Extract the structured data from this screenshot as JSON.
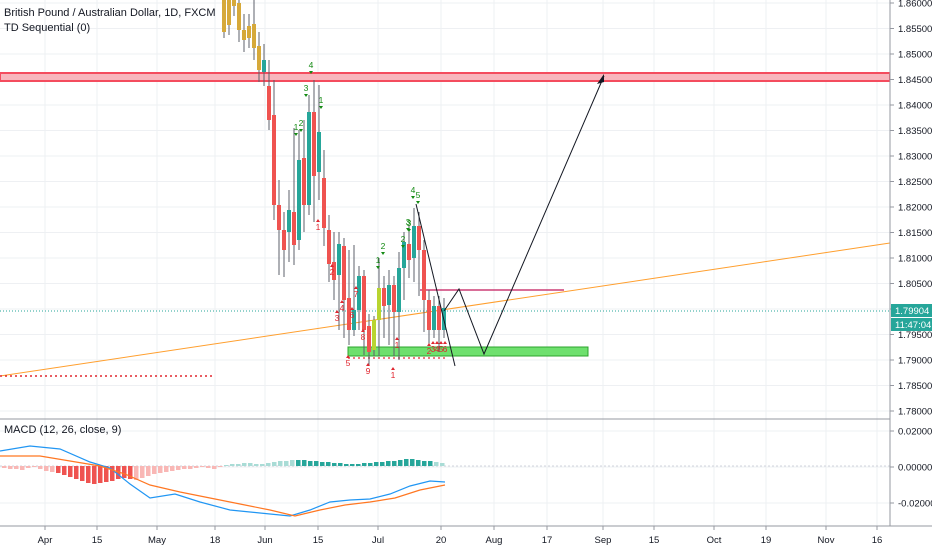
{
  "header": {
    "symbol": "British Pound / Australian Dollar, 1D, FXCM",
    "indicator": "TD Sequential (0)"
  },
  "macd": {
    "label": "MACD (12, 26, close, 9)",
    "ticks": [
      "0.02000",
      "0.00000",
      "-0.02000"
    ]
  },
  "price_axis": {
    "ticks": [
      "1.86000",
      "1.85500",
      "1.85000",
      "1.84500",
      "1.84000",
      "1.83500",
      "1.83000",
      "1.82500",
      "1.82000",
      "1.81500",
      "1.81000",
      "1.80500",
      "1.80000",
      "1.79500",
      "1.79000",
      "1.78500",
      "1.78000"
    ],
    "last_price": "1.79904",
    "countdown": "11:47:04"
  },
  "time_axis": {
    "ticks": [
      "Apr",
      "15",
      "May",
      "18",
      "Jun",
      "15",
      "Jul",
      "20",
      "Aug",
      "17",
      "Sep",
      "15",
      "Oct",
      "19",
      "Nov",
      "16"
    ]
  },
  "colors": {
    "up": "#26a69a",
    "down": "#ef5350",
    "resistance_zone": "#f44c5e",
    "support_zone": "#4cd964",
    "trendline": "#ff9f2e",
    "price_line": "#26a69a",
    "macd_line": "#2196f3",
    "signal_line": "#ff7722"
  },
  "chart_data": {
    "type": "candlestick",
    "resistance_zone": [
      1.8445,
      1.846
    ],
    "support_zone": [
      1.7905,
      1.792
    ],
    "td_green": [
      "1",
      "2",
      "3",
      "4",
      "3",
      "1",
      "2",
      "1",
      "2",
      "3",
      "4",
      "5"
    ],
    "td_red": [
      "1",
      "2",
      "3",
      "4",
      "5",
      "6",
      "7",
      "8",
      "9",
      "1",
      "2",
      "3",
      "4",
      "5",
      "6",
      "1"
    ]
  }
}
